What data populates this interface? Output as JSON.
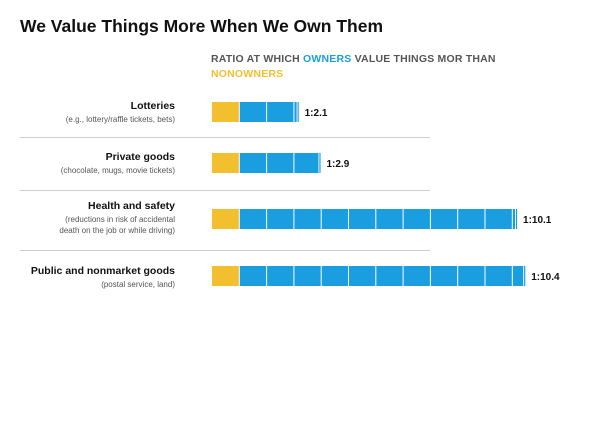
{
  "title": "We Value Things More When We Own Them",
  "subtitle": {
    "part1": "RATIO AT WHICH ",
    "owners": "OWNERS",
    "part2": " VALUE THINGS MOR THAN ",
    "nonowners": "NONOWNERS"
  },
  "colors": {
    "owners": "#1a9ee0",
    "nonowners": "#f2c02e",
    "divider": "#cccccc",
    "text": "#111111",
    "subtext": "#555555"
  },
  "chart_data": {
    "type": "bar",
    "orientation": "horizontal",
    "title": "We Value Things More When We Own Them",
    "subtitle": "RATIO AT WHICH OWNERS VALUE THINGS MOR THAN NONOWNERS",
    "categories": [
      "Lotteries",
      "Private goods",
      "Health and safety",
      "Public and nonmarket goods"
    ],
    "descriptions": [
      [
        "(e.g., lottery/raffle tickets, bets)"
      ],
      [
        "(chocolate, mugs, movie tickets)"
      ],
      [
        "(reductions in risk of accidental",
        "death on the job or while driving)"
      ],
      [
        "(postal service, land)"
      ]
    ],
    "series": [
      {
        "name": "NONOWNERS",
        "values": [
          1,
          1,
          1,
          1
        ]
      },
      {
        "name": "OWNERS",
        "values": [
          2.1,
          2.9,
          10.1,
          10.4
        ]
      }
    ],
    "value_labels": [
      "1:2.1",
      "1:2.9",
      "1:10.1",
      "1:10.4"
    ],
    "grid": false,
    "legend": "none"
  }
}
